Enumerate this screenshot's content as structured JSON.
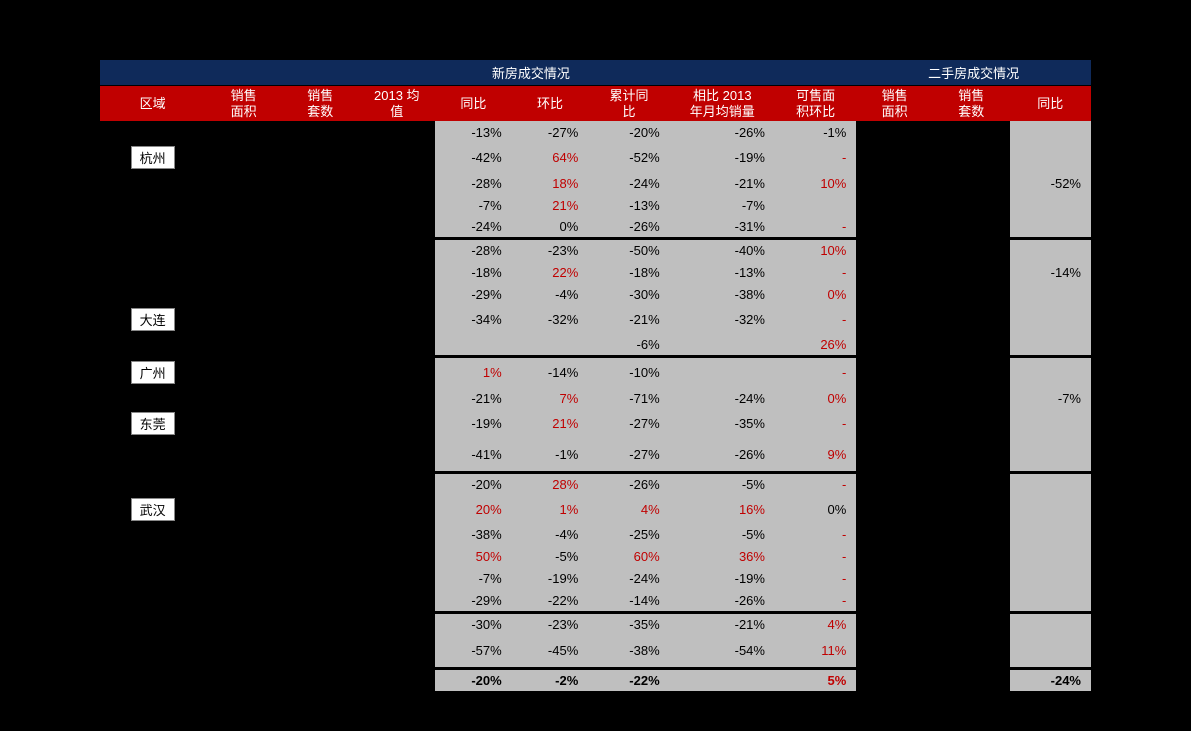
{
  "headers": {
    "group_new": "新房成交情况",
    "group_used": "二手房成交情况",
    "region": "区域",
    "sale_area": "销售\n面积",
    "sale_count": "销售\n套数",
    "avg_2013": "2013 均\n值",
    "yoy": "同比",
    "mom": "环比",
    "cum_yoy": "累计同\n比",
    "vs_2013": "相比 2013\n年月均销量",
    "avail_mom": "可售面\n积环比",
    "used_sale_area": "销售\n面积",
    "used_sale_count": "销售\n套数",
    "used_yoy": "同比"
  },
  "colors": {
    "hdr_group_bg": "#0f2a5a",
    "hdr_col_bg": "#c00000",
    "gray_bg": "#bfbfbf",
    "pos_text": "#c00000",
    "neg_text": "#000000",
    "page_bg": "#000000",
    "region_box_bg": "#ffffff"
  },
  "rows": [
    {
      "region": "",
      "yoy": "-13%",
      "mom": "-27%",
      "cum": "-20%",
      "vs": "-26%",
      "avail": "-1%",
      "used_yoy": "",
      "mom_pos": false,
      "avail_pos": false,
      "yoy_pos": false,
      "cum_pos": false,
      "vs_pos": false
    },
    {
      "region": "杭州",
      "yoy": "-42%",
      "mom": "64%",
      "cum": "-52%",
      "vs": "-19%",
      "avail": "-",
      "used_yoy": "",
      "mom_pos": true,
      "avail_pos": true,
      "yoy_pos": false,
      "cum_pos": false,
      "vs_pos": false
    },
    {
      "region": "",
      "yoy": "-28%",
      "mom": "18%",
      "cum": "-24%",
      "vs": "-21%",
      "avail": "10%",
      "used_yoy": "-52%",
      "mom_pos": true,
      "avail_pos": true,
      "yoy_pos": false,
      "cum_pos": false,
      "vs_pos": false
    },
    {
      "region": "",
      "yoy": "-7%",
      "mom": "21%",
      "cum": "-13%",
      "vs": "-7%",
      "avail": "",
      "used_yoy": "",
      "mom_pos": true,
      "avail_pos": false,
      "yoy_pos": false,
      "cum_pos": false,
      "vs_pos": false
    },
    {
      "region": "",
      "yoy": "-24%",
      "mom": "0%",
      "cum": "-26%",
      "vs": "-31%",
      "avail": "-",
      "used_yoy": "",
      "mom_pos": false,
      "avail_pos": true,
      "yoy_pos": false,
      "cum_pos": false,
      "vs_pos": false
    },
    {
      "sep": true,
      "region": "",
      "yoy": "-28%",
      "mom": "-23%",
      "cum": "-50%",
      "vs": "-40%",
      "avail": "10%",
      "used_yoy": "",
      "mom_pos": false,
      "avail_pos": true,
      "yoy_pos": false,
      "cum_pos": false,
      "vs_pos": false
    },
    {
      "region": "",
      "yoy": "-18%",
      "mom": "22%",
      "cum": "-18%",
      "vs": "-13%",
      "avail": "-",
      "used_yoy": "-14%",
      "mom_pos": true,
      "avail_pos": true,
      "yoy_pos": false,
      "cum_pos": false,
      "vs_pos": false
    },
    {
      "region": "",
      "yoy": "-29%",
      "mom": "-4%",
      "cum": "-30%",
      "vs": "-38%",
      "avail": "0%",
      "used_yoy": "",
      "mom_pos": false,
      "avail_pos": true,
      "yoy_pos": false,
      "cum_pos": false,
      "vs_pos": false
    },
    {
      "region": "大连",
      "yoy": "-34%",
      "mom": "-32%",
      "cum": "-21%",
      "vs": "-32%",
      "avail": "-",
      "used_yoy": "",
      "mom_pos": false,
      "avail_pos": true,
      "yoy_pos": false,
      "cum_pos": false,
      "vs_pos": false
    },
    {
      "region": "",
      "yoy": "",
      "mom": "",
      "cum": "-6%",
      "vs": "",
      "avail": "26%",
      "used_yoy": "",
      "mom_pos": false,
      "avail_pos": true,
      "yoy_pos": false,
      "cum_pos": false,
      "vs_pos": false
    },
    {
      "sep": true,
      "region": "广州",
      "yoy": "1%",
      "mom": "-14%",
      "cum": "-10%",
      "vs": "",
      "avail": "-",
      "used_yoy": "",
      "mom_pos": false,
      "avail_pos": true,
      "yoy_pos": true,
      "cum_pos": false,
      "vs_pos": false
    },
    {
      "region": "",
      "yoy": "-21%",
      "mom": "7%",
      "cum": "-71%",
      "vs": "-24%",
      "avail": "0%",
      "used_yoy": "-7%",
      "mom_pos": true,
      "avail_pos": true,
      "yoy_pos": false,
      "cum_pos": false,
      "vs_pos": false
    },
    {
      "region": "东莞",
      "yoy": "-19%",
      "mom": "21%",
      "cum": "-27%",
      "vs": "-35%",
      "avail": "-",
      "used_yoy": "",
      "mom_pos": true,
      "avail_pos": true,
      "yoy_pos": false,
      "cum_pos": false,
      "vs_pos": false
    },
    {
      "region": "",
      "yoy": "-41%",
      "mom": "-1%",
      "cum": "-27%",
      "vs": "-26%",
      "avail": "9%",
      "used_yoy": "",
      "mom_pos": false,
      "avail_pos": true,
      "yoy_pos": false,
      "cum_pos": false,
      "vs_pos": false,
      "tall": true
    },
    {
      "sep": true,
      "region": "",
      "yoy": "-20%",
      "mom": "28%",
      "cum": "-26%",
      "vs": "-5%",
      "avail": "-",
      "used_yoy": "",
      "mom_pos": true,
      "avail_pos": true,
      "yoy_pos": false,
      "cum_pos": false,
      "vs_pos": false
    },
    {
      "region": "武汉",
      "yoy": "20%",
      "mom": "1%",
      "cum": "4%",
      "vs": "16%",
      "avail": "0%",
      "used_yoy": "",
      "mom_pos": true,
      "avail_pos": false,
      "yoy_pos": true,
      "cum_pos": true,
      "vs_pos": true
    },
    {
      "region": "",
      "yoy": "-38%",
      "mom": "-4%",
      "cum": "-25%",
      "vs": "-5%",
      "avail": "-",
      "used_yoy": "",
      "mom_pos": false,
      "avail_pos": true,
      "yoy_pos": false,
      "cum_pos": false,
      "vs_pos": false
    },
    {
      "region": "",
      "yoy": "50%",
      "mom": "-5%",
      "cum": "60%",
      "vs": "36%",
      "avail": "-",
      "used_yoy": "",
      "mom_pos": false,
      "avail_pos": true,
      "yoy_pos": true,
      "cum_pos": true,
      "vs_pos": true
    },
    {
      "region": "",
      "yoy": "-7%",
      "mom": "-19%",
      "cum": "-24%",
      "vs": "-19%",
      "avail": "-",
      "used_yoy": "",
      "mom_pos": false,
      "avail_pos": true,
      "yoy_pos": false,
      "cum_pos": false,
      "vs_pos": false
    },
    {
      "region": "",
      "yoy": "-29%",
      "mom": "-22%",
      "cum": "-14%",
      "vs": "-26%",
      "avail": "-",
      "used_yoy": "",
      "mom_pos": false,
      "avail_pos": true,
      "yoy_pos": false,
      "cum_pos": false,
      "vs_pos": false
    },
    {
      "sep": true,
      "region": "",
      "yoy": "-30%",
      "mom": "-23%",
      "cum": "-35%",
      "vs": "-21%",
      "avail": "4%",
      "used_yoy": "",
      "mom_pos": false,
      "avail_pos": true,
      "yoy_pos": false,
      "cum_pos": false,
      "vs_pos": false
    },
    {
      "region": "",
      "yoy": "-57%",
      "mom": "-45%",
      "cum": "-38%",
      "vs": "-54%",
      "avail": "11%",
      "used_yoy": "",
      "mom_pos": false,
      "avail_pos": true,
      "yoy_pos": false,
      "cum_pos": false,
      "vs_pos": false,
      "tall": true
    },
    {
      "sep": true,
      "summary": true,
      "region": "",
      "yoy": "-20%",
      "mom": "-2%",
      "cum": "-22%",
      "vs": "",
      "avail": "5%",
      "used_yoy": "-24%",
      "mom_pos": false,
      "avail_pos": true,
      "yoy_pos": false,
      "cum_pos": false,
      "vs_pos": false
    }
  ]
}
